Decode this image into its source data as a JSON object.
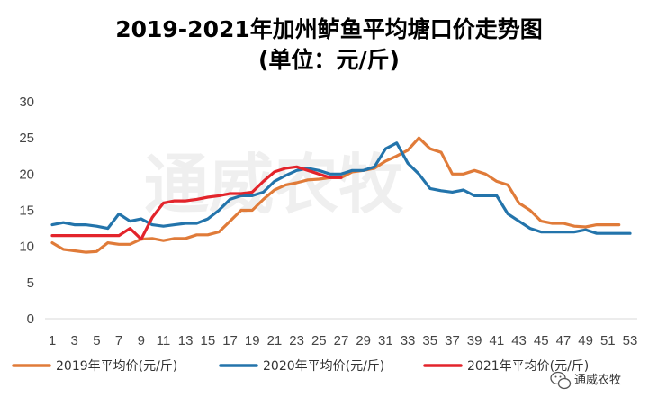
{
  "chart_data": {
    "type": "line",
    "title": "2019-2021年加州鲈鱼平均塘口价走势图",
    "subtitle": "(单位：元/斤)",
    "ylim": [
      0,
      30
    ],
    "yticks": [
      0,
      5,
      10,
      15,
      20,
      25,
      30
    ],
    "xticks": [
      1,
      3,
      5,
      7,
      9,
      11,
      13,
      15,
      17,
      19,
      21,
      23,
      25,
      27,
      29,
      31,
      33,
      35,
      37,
      39,
      41,
      43,
      45,
      47,
      49,
      51,
      53
    ],
    "grid": false,
    "legend_position": "bottom",
    "series": [
      {
        "name": "2019年平均价(元/斤)",
        "color": "#E07B39",
        "x": [
          1,
          2,
          3,
          4,
          5,
          6,
          7,
          8,
          9,
          10,
          11,
          12,
          13,
          14,
          15,
          16,
          17,
          18,
          19,
          20,
          21,
          22,
          23,
          24,
          25,
          26,
          27,
          28,
          29,
          30,
          31,
          32,
          33,
          34,
          35,
          36,
          37,
          38,
          39,
          40,
          41,
          42,
          43,
          44,
          45,
          46,
          47,
          48,
          49,
          50,
          51,
          52
        ],
        "values": [
          10.5,
          9.6,
          9.4,
          9.2,
          9.3,
          10.5,
          10.3,
          10.3,
          11.0,
          11.1,
          10.8,
          11.1,
          11.1,
          11.6,
          11.6,
          12.0,
          13.5,
          15.0,
          15.0,
          16.5,
          17.8,
          18.5,
          18.8,
          19.2,
          19.3,
          19.5,
          19.5,
          20.3,
          20.5,
          20.8,
          21.8,
          22.5,
          23.3,
          25.0,
          23.5,
          23.0,
          20.0,
          20.0,
          20.5,
          20.0,
          19.0,
          18.5,
          16.0,
          15.0,
          13.5,
          13.2,
          13.2,
          12.8,
          12.7,
          13.0,
          13.0,
          13.0
        ]
      },
      {
        "name": "2020年平均价(元/斤)",
        "color": "#2374AB",
        "x": [
          1,
          2,
          3,
          4,
          5,
          6,
          7,
          8,
          9,
          10,
          11,
          12,
          13,
          14,
          15,
          16,
          17,
          18,
          19,
          20,
          21,
          22,
          23,
          24,
          25,
          26,
          27,
          28,
          29,
          30,
          31,
          32,
          33,
          34,
          35,
          36,
          37,
          38,
          39,
          40,
          41,
          42,
          43,
          44,
          45,
          46,
          47,
          48,
          49,
          50,
          51,
          52,
          53
        ],
        "values": [
          13.0,
          13.3,
          13.0,
          13.0,
          12.8,
          12.5,
          14.5,
          13.5,
          13.8,
          13.0,
          12.8,
          13.0,
          13.2,
          13.2,
          13.8,
          15.0,
          16.5,
          17.0,
          17.0,
          17.5,
          19.0,
          19.8,
          20.5,
          20.8,
          20.5,
          20.0,
          20.0,
          20.5,
          20.5,
          21.0,
          23.5,
          24.3,
          21.5,
          20.0,
          18.0,
          17.7,
          17.5,
          17.8,
          17.0,
          17.0,
          17.0,
          14.5,
          13.5,
          12.5,
          12.0,
          12.0,
          12.0,
          12.0,
          12.3,
          11.8,
          11.8,
          11.8,
          11.8
        ]
      },
      {
        "name": "2021年平均价(元/斤)",
        "color": "#E3242B",
        "x": [
          1,
          2,
          3,
          4,
          5,
          6,
          7,
          8,
          9,
          10,
          11,
          12,
          13,
          14,
          15,
          16,
          17,
          18,
          19,
          20,
          21,
          22,
          23,
          24,
          25,
          26,
          27
        ],
        "values": [
          11.5,
          11.5,
          11.5,
          11.5,
          11.5,
          11.5,
          11.5,
          12.5,
          11.0,
          14.0,
          16.0,
          16.3,
          16.3,
          16.5,
          16.8,
          17.0,
          17.3,
          17.3,
          17.5,
          19.0,
          20.3,
          20.8,
          21.0,
          20.5,
          20.0,
          19.5,
          19.5
        ]
      }
    ]
  },
  "watermark": "通威农牧",
  "wechat_badge": {
    "icon": "wechat-icon",
    "label": "通威农牧"
  }
}
